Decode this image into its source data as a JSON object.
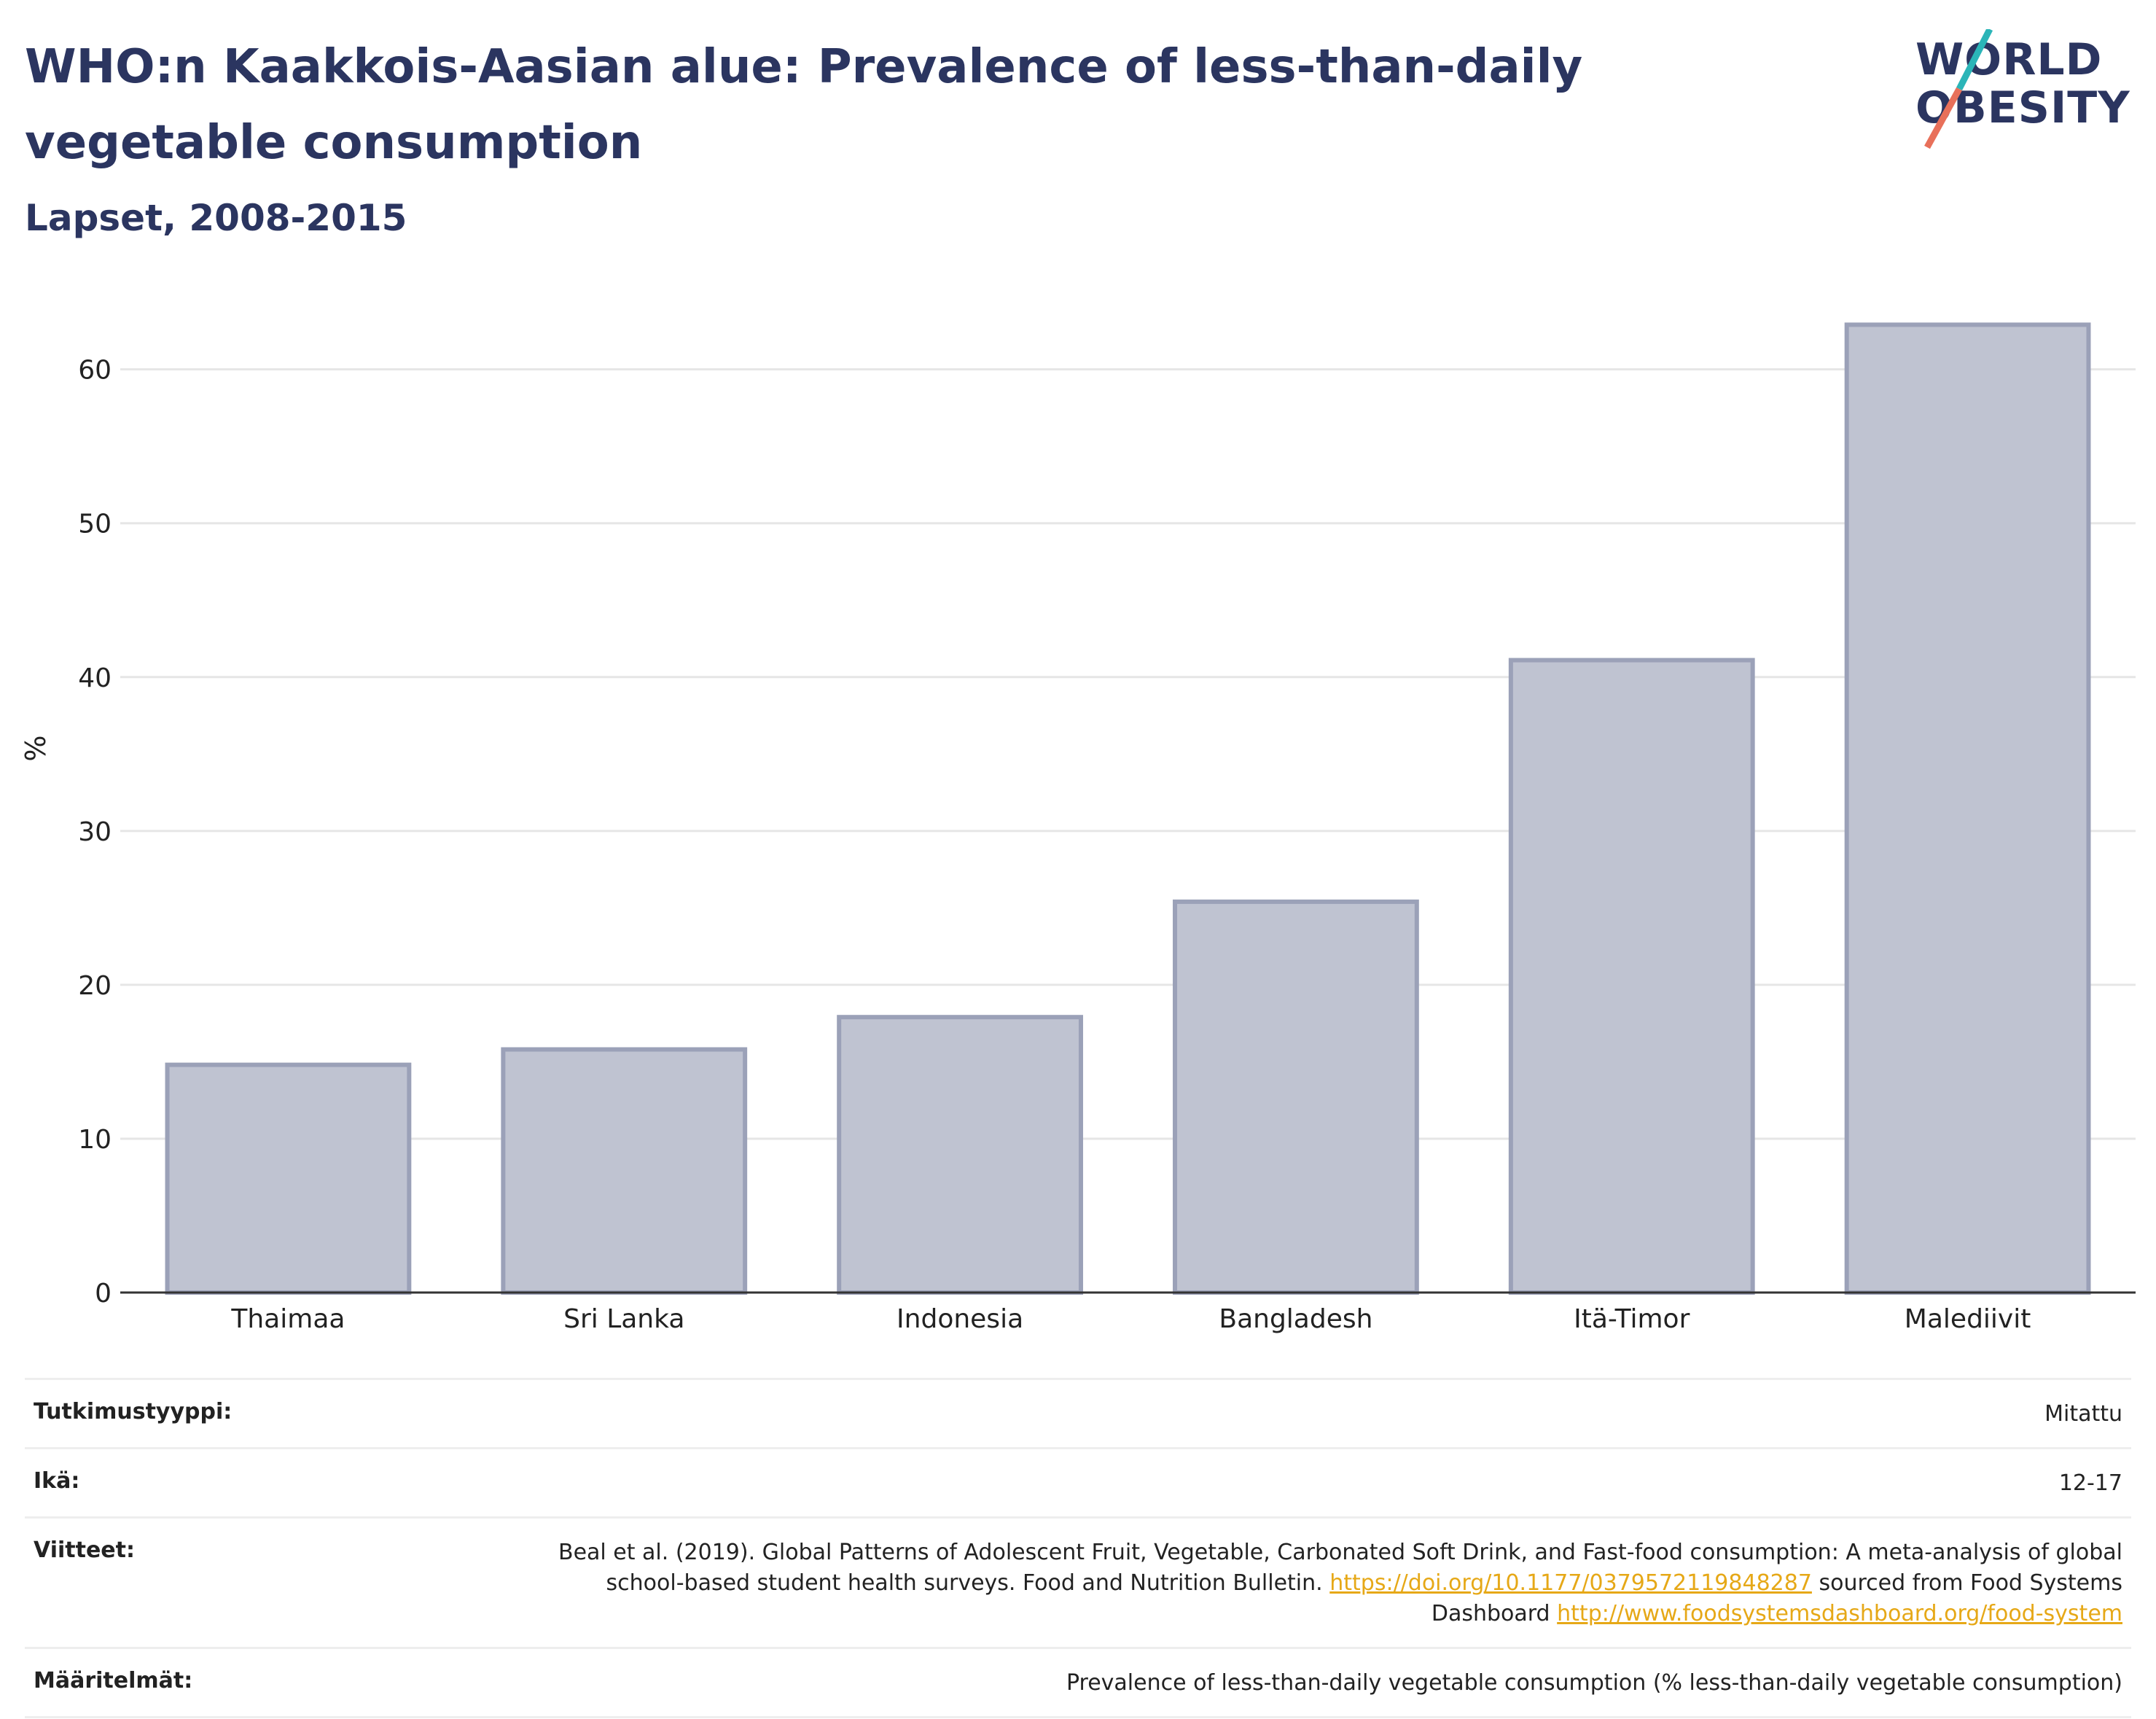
{
  "title": "WHO:n Kaakkois-Aasian alue: Prevalence of less-than-daily vegetable consumption",
  "subtitle": "Lapset, 2008-2015",
  "logo": {
    "line1": "WORLD",
    "line2": "OBESITY"
  },
  "colors": {
    "bar_fill": "#bfc3d1",
    "bar_stroke": "#9ba1b8",
    "title": "#2b3560",
    "link": "#e6a817",
    "logo_teal": "#2bb5b8",
    "logo_coral": "#e8705a"
  },
  "chart_data": {
    "type": "bar",
    "title": "",
    "xlabel": "",
    "ylabel": "%",
    "categories": [
      "Thaimaa",
      "Sri Lanka",
      "Indonesia",
      "Bangladesh",
      "Itä-Timor",
      "Malediivit"
    ],
    "values": [
      14.8,
      15.8,
      17.9,
      25.4,
      41.1,
      62.9
    ],
    "ylim": [
      0,
      66
    ],
    "yticks": [
      0,
      10,
      20,
      30,
      40,
      50,
      60
    ],
    "grid": true
  },
  "meta": {
    "study_type_label": "Tutkimustyyppi:",
    "study_type_value": "Mitattu",
    "age_label": "Ikä:",
    "age_value": "12-17",
    "refs_label": "Viitteet:",
    "refs_text1": "Beal et al. (2019). Global Patterns of Adolescent Fruit, Vegetable, Carbonated Soft Drink, and Fast-food consumption: A meta-analysis of global school-based student health surveys. Food and Nutrition Bulletin.",
    "refs_link1": "https://doi.org/10.1177/0379572119848287",
    "refs_text2": "sourced from Food Systems Dashboard",
    "refs_link2": "http://www.foodsystemsdashboard.org/food-system",
    "defs_label": "Määritelmät:",
    "defs_value": "Prevalence of less-than-daily vegetable consumption (% less-than-daily vegetable consumption)"
  }
}
